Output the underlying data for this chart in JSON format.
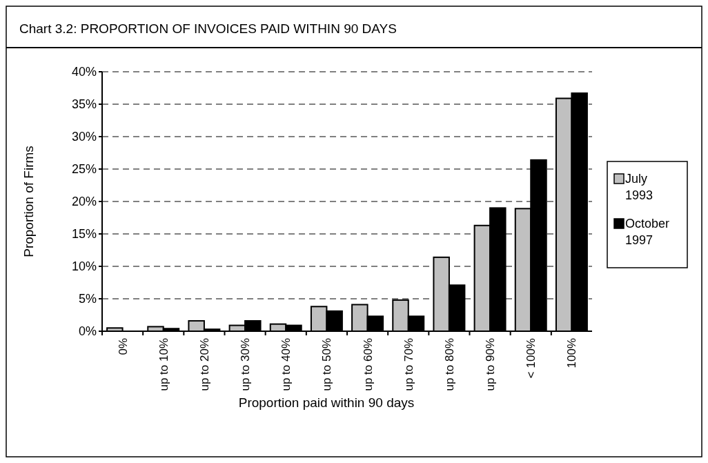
{
  "chart_data": {
    "type": "bar",
    "title": "Chart 3.2:     PROPORTION OF INVOICES PAID WITHIN 90 DAYS",
    "xlabel": "Proportion paid within 90 days",
    "ylabel": "Proportion of Firms",
    "categories": [
      "0%",
      "up to 10%",
      "up to 20%",
      "up to 30%",
      "up to 40%",
      "up to 50%",
      "up to 60%",
      "up to 70%",
      "up to 80%",
      "up to 90%",
      "< 100%",
      "100%"
    ],
    "series": [
      {
        "name": "July 1993",
        "color": "#c0c0c0",
        "values": [
          0.5,
          0.7,
          1.6,
          0.9,
          1.1,
          3.8,
          4.1,
          4.8,
          11.4,
          16.3,
          18.9,
          35.9
        ]
      },
      {
        "name": "October 1997",
        "color": "#000000",
        "values": [
          0,
          0.4,
          0.3,
          1.6,
          0.9,
          3.1,
          2.3,
          2.3,
          7.1,
          19.0,
          26.4,
          36.7
        ]
      }
    ],
    "ylim": [
      0,
      40
    ],
    "yticks": [
      {
        "value": 0,
        "label": "0%"
      },
      {
        "value": 5,
        "label": "5%"
      },
      {
        "value": 10,
        "label": "10%"
      },
      {
        "value": 15,
        "label": "15%"
      },
      {
        "value": 20,
        "label": "20%"
      },
      {
        "value": 25,
        "label": "25%"
      },
      {
        "value": 30,
        "label": "30%"
      },
      {
        "value": 35,
        "label": "35%"
      },
      {
        "value": 40,
        "label": "40%"
      }
    ],
    "grid": "y",
    "legend": "right"
  }
}
